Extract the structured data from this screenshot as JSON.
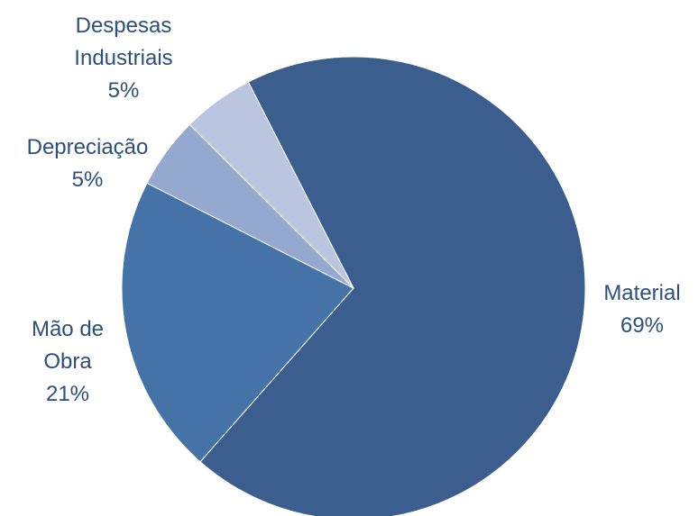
{
  "chart_data": {
    "type": "pie",
    "title": "",
    "start_angle_deg": -27,
    "direction": "clockwise",
    "slices": [
      {
        "label_lines": [
          "Material"
        ],
        "value": 69,
        "value_label": "69%",
        "color": "#3b5e8f"
      },
      {
        "label_lines": [
          "Mão de",
          "Obra"
        ],
        "value": 21,
        "value_label": "21%",
        "color": "#4573a7"
      },
      {
        "label_lines": [
          "Depreciação"
        ],
        "value": 5,
        "value_label": "5%",
        "color": "#95a8d0"
      },
      {
        "label_lines": [
          "Despesas",
          "Industriais"
        ],
        "value": 5,
        "value_label": "5%",
        "color": "#bac6e0"
      }
    ]
  }
}
